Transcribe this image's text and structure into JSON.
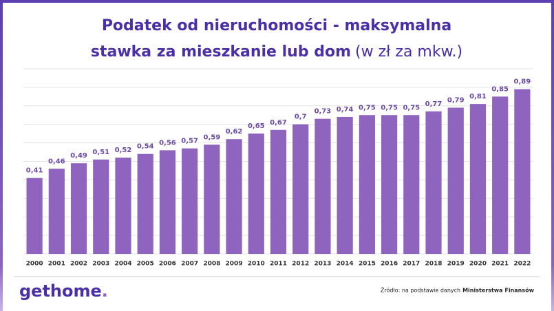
{
  "chart_data": {
    "type": "bar",
    "title_line1": "Podatek od nieruchomości - maksymalna",
    "title_line2": "stawka za mieszkanie lub dom",
    "title_unit": "(w zł za mkw.)",
    "categories": [
      "2000",
      "2001",
      "2002",
      "2003",
      "2004",
      "2005",
      "2006",
      "2007",
      "2008",
      "2009",
      "2010",
      "2011",
      "2012",
      "2013",
      "2014",
      "2015",
      "2016",
      "2017",
      "2018",
      "2019",
      "2020",
      "2021",
      "2022"
    ],
    "values": [
      0.41,
      0.46,
      0.49,
      0.51,
      0.52,
      0.54,
      0.56,
      0.57,
      0.59,
      0.62,
      0.65,
      0.67,
      0.7,
      0.73,
      0.74,
      0.75,
      0.75,
      0.75,
      0.77,
      0.79,
      0.81,
      0.85,
      0.89
    ],
    "value_labels": [
      "0,41",
      "0,46",
      "0,49",
      "0,51",
      "0,52",
      "0,54",
      "0,56",
      "0,57",
      "0,59",
      "0,62",
      "0,65",
      "0,67",
      "0,7",
      "0,73",
      "0,74",
      "0,75",
      "0,75",
      "0,75",
      "0,77",
      "0,79",
      "0,81",
      "0,85",
      "0,89"
    ],
    "color": "#8e64bf",
    "ylim": [
      0,
      1
    ],
    "yticks": [
      0,
      0.1,
      0.2,
      0.3,
      0.4,
      0.5,
      0.6,
      0.7,
      0.8,
      0.9,
      1
    ],
    "grid": true
  },
  "footer": {
    "logo": "gethome",
    "logo_dot": ".",
    "source": "Źródło: na podstawie danych",
    "source_bold": "Ministerstwa Finansów"
  }
}
